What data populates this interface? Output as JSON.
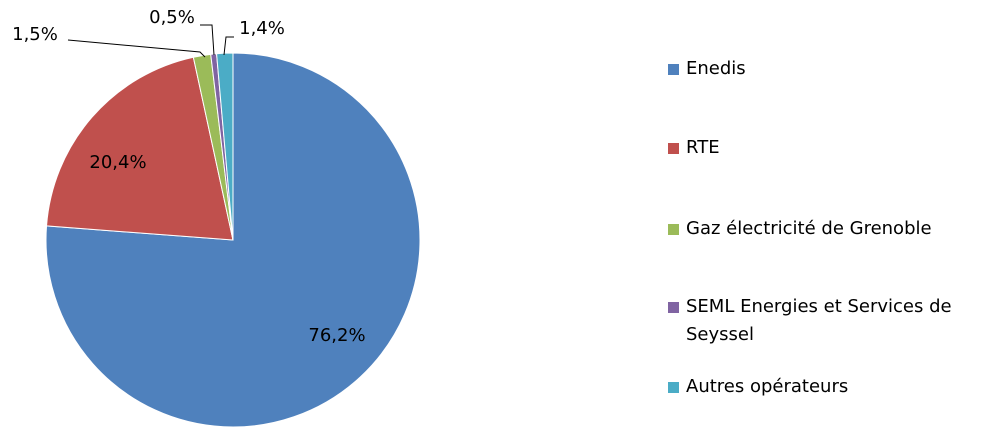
{
  "chart_data": {
    "type": "pie",
    "categories": [
      "Enedis",
      "RTE",
      "Gaz électricité de Grenoble",
      "SEML Energies et Services de Seyssel",
      "Autres opérateurs"
    ],
    "values": [
      76.2,
      20.4,
      1.5,
      0.5,
      1.4
    ],
    "value_labels": [
      "76,2%",
      "20,4%",
      "1,5%",
      "0,5%",
      "1,4%"
    ],
    "colors": [
      "#4f81bd",
      "#c0504d",
      "#9bbb59",
      "#8064a2",
      "#4bacc6"
    ],
    "legend": "right"
  }
}
